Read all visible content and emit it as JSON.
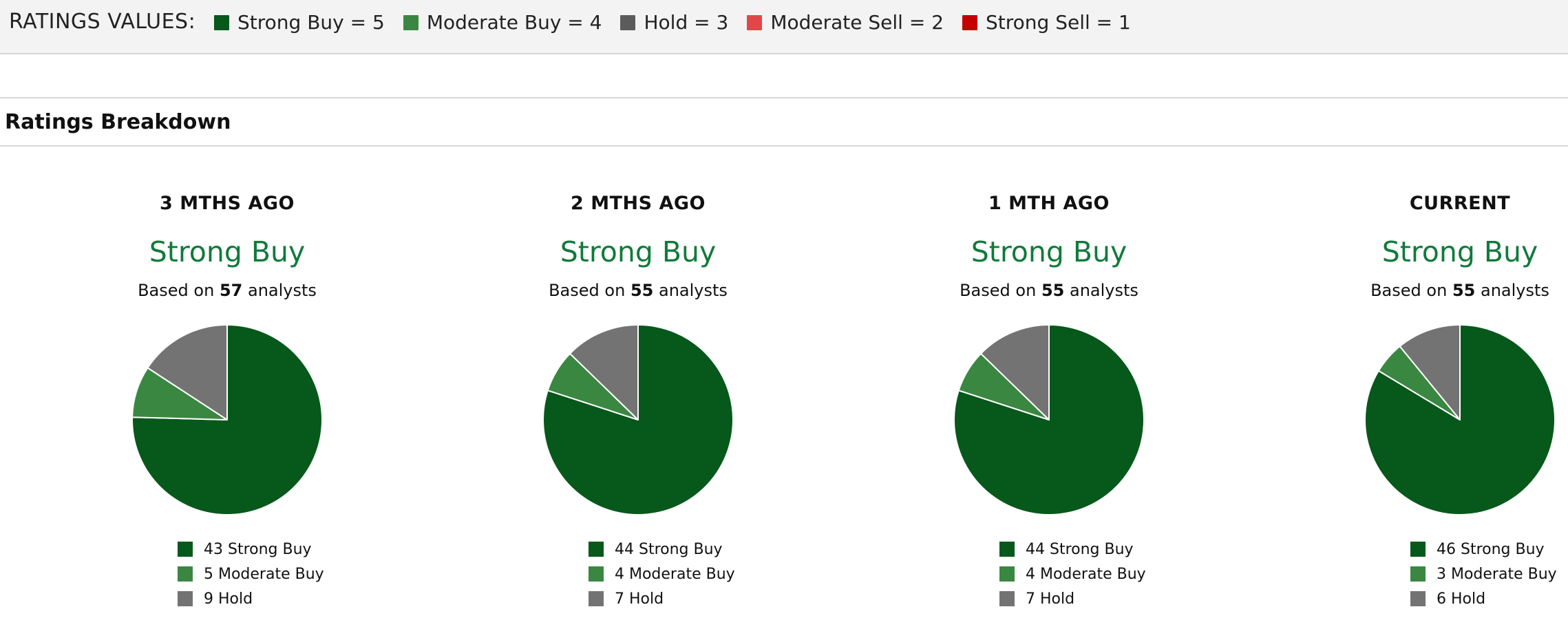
{
  "header": {
    "ratings_values_label": "RATINGS VALUES:",
    "legend": [
      {
        "label": "Strong Buy = 5",
        "color": "#07581b"
      },
      {
        "label": "Moderate Buy = 4",
        "color": "#3a8741"
      },
      {
        "label": "Hold = 3",
        "color": "#5c5c5c"
      },
      {
        "label": "Moderate Sell = 2",
        "color": "#e04848"
      },
      {
        "label": "Strong Sell = 1",
        "color": "#c40000"
      }
    ]
  },
  "section": {
    "title": "Ratings Breakdown"
  },
  "colors": {
    "strong_buy": "#07581b",
    "moderate_buy": "#3a8741",
    "hold": "#737373",
    "rating_text": "#107a3a"
  },
  "chart_data": [
    {
      "type": "pie",
      "title": "3 MTHS AGO",
      "consensus": "Strong Buy",
      "based_on_prefix": "Based on",
      "analysts": "57",
      "based_on_suffix": "analysts",
      "slices": [
        {
          "label": "Strong Buy",
          "value": 43,
          "text": "43 Strong Buy"
        },
        {
          "label": "Moderate Buy",
          "value": 5,
          "text": "5 Moderate Buy"
        },
        {
          "label": "Hold",
          "value": 9,
          "text": "9 Hold"
        }
      ]
    },
    {
      "type": "pie",
      "title": "2 MTHS AGO",
      "consensus": "Strong Buy",
      "based_on_prefix": "Based on",
      "analysts": "55",
      "based_on_suffix": "analysts",
      "slices": [
        {
          "label": "Strong Buy",
          "value": 44,
          "text": "44 Strong Buy"
        },
        {
          "label": "Moderate Buy",
          "value": 4,
          "text": "4 Moderate Buy"
        },
        {
          "label": "Hold",
          "value": 7,
          "text": "7 Hold"
        }
      ]
    },
    {
      "type": "pie",
      "title": "1 MTH AGO",
      "consensus": "Strong Buy",
      "based_on_prefix": "Based on",
      "analysts": "55",
      "based_on_suffix": "analysts",
      "slices": [
        {
          "label": "Strong Buy",
          "value": 44,
          "text": "44 Strong Buy"
        },
        {
          "label": "Moderate Buy",
          "value": 4,
          "text": "4 Moderate Buy"
        },
        {
          "label": "Hold",
          "value": 7,
          "text": "7 Hold"
        }
      ]
    },
    {
      "type": "pie",
      "title": "CURRENT",
      "consensus": "Strong Buy",
      "based_on_prefix": "Based on",
      "analysts": "55",
      "based_on_suffix": "analysts",
      "slices": [
        {
          "label": "Strong Buy",
          "value": 46,
          "text": "46 Strong Buy"
        },
        {
          "label": "Moderate Buy",
          "value": 3,
          "text": "3 Moderate Buy"
        },
        {
          "label": "Hold",
          "value": 6,
          "text": "6 Hold"
        }
      ]
    }
  ]
}
